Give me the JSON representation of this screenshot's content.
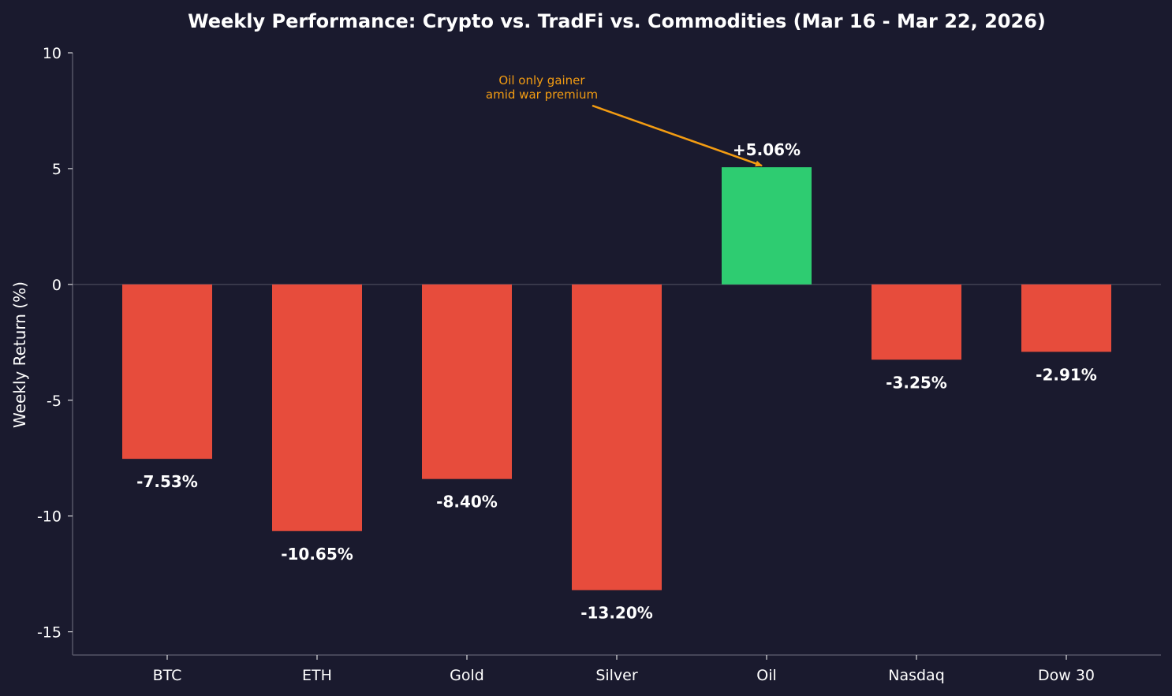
{
  "chart_data": {
    "type": "bar",
    "title": "Weekly Performance: Crypto vs. TradFi vs. Commodities (Mar 16 - Mar 22, 2026)",
    "xlabel": "",
    "ylabel": "Weekly Return (%)",
    "categories": [
      "BTC",
      "ETH",
      "Gold",
      "Silver",
      "Oil",
      "Nasdaq",
      "Dow 30"
    ],
    "values": [
      -7.53,
      -10.65,
      -8.4,
      -13.2,
      5.06,
      -3.25,
      -2.91
    ],
    "value_labels": [
      "-7.53%",
      "-10.65%",
      "-8.40%",
      "-13.20%",
      "+5.06%",
      "-3.25%",
      "-2.91%"
    ],
    "ylim": [
      -16,
      10
    ],
    "yticks": [
      10,
      5,
      0,
      -5,
      -10,
      -15
    ],
    "ytick_labels": [
      "10",
      "5",
      "0",
      "-5",
      "-10",
      "-15"
    ],
    "grid": false,
    "zero_line": true,
    "annotation": {
      "lines": [
        "Oil only gainer",
        "amid war premium"
      ],
      "target_category": "Oil",
      "target_value": 5.06
    },
    "colors": {
      "background": "#1a1a2e",
      "positive": "#2ecc71",
      "negative": "#e74c3c",
      "text": "#ffffff",
      "axis": "#555566",
      "zero_line": "#555566",
      "annotation": "#f39c12"
    }
  }
}
